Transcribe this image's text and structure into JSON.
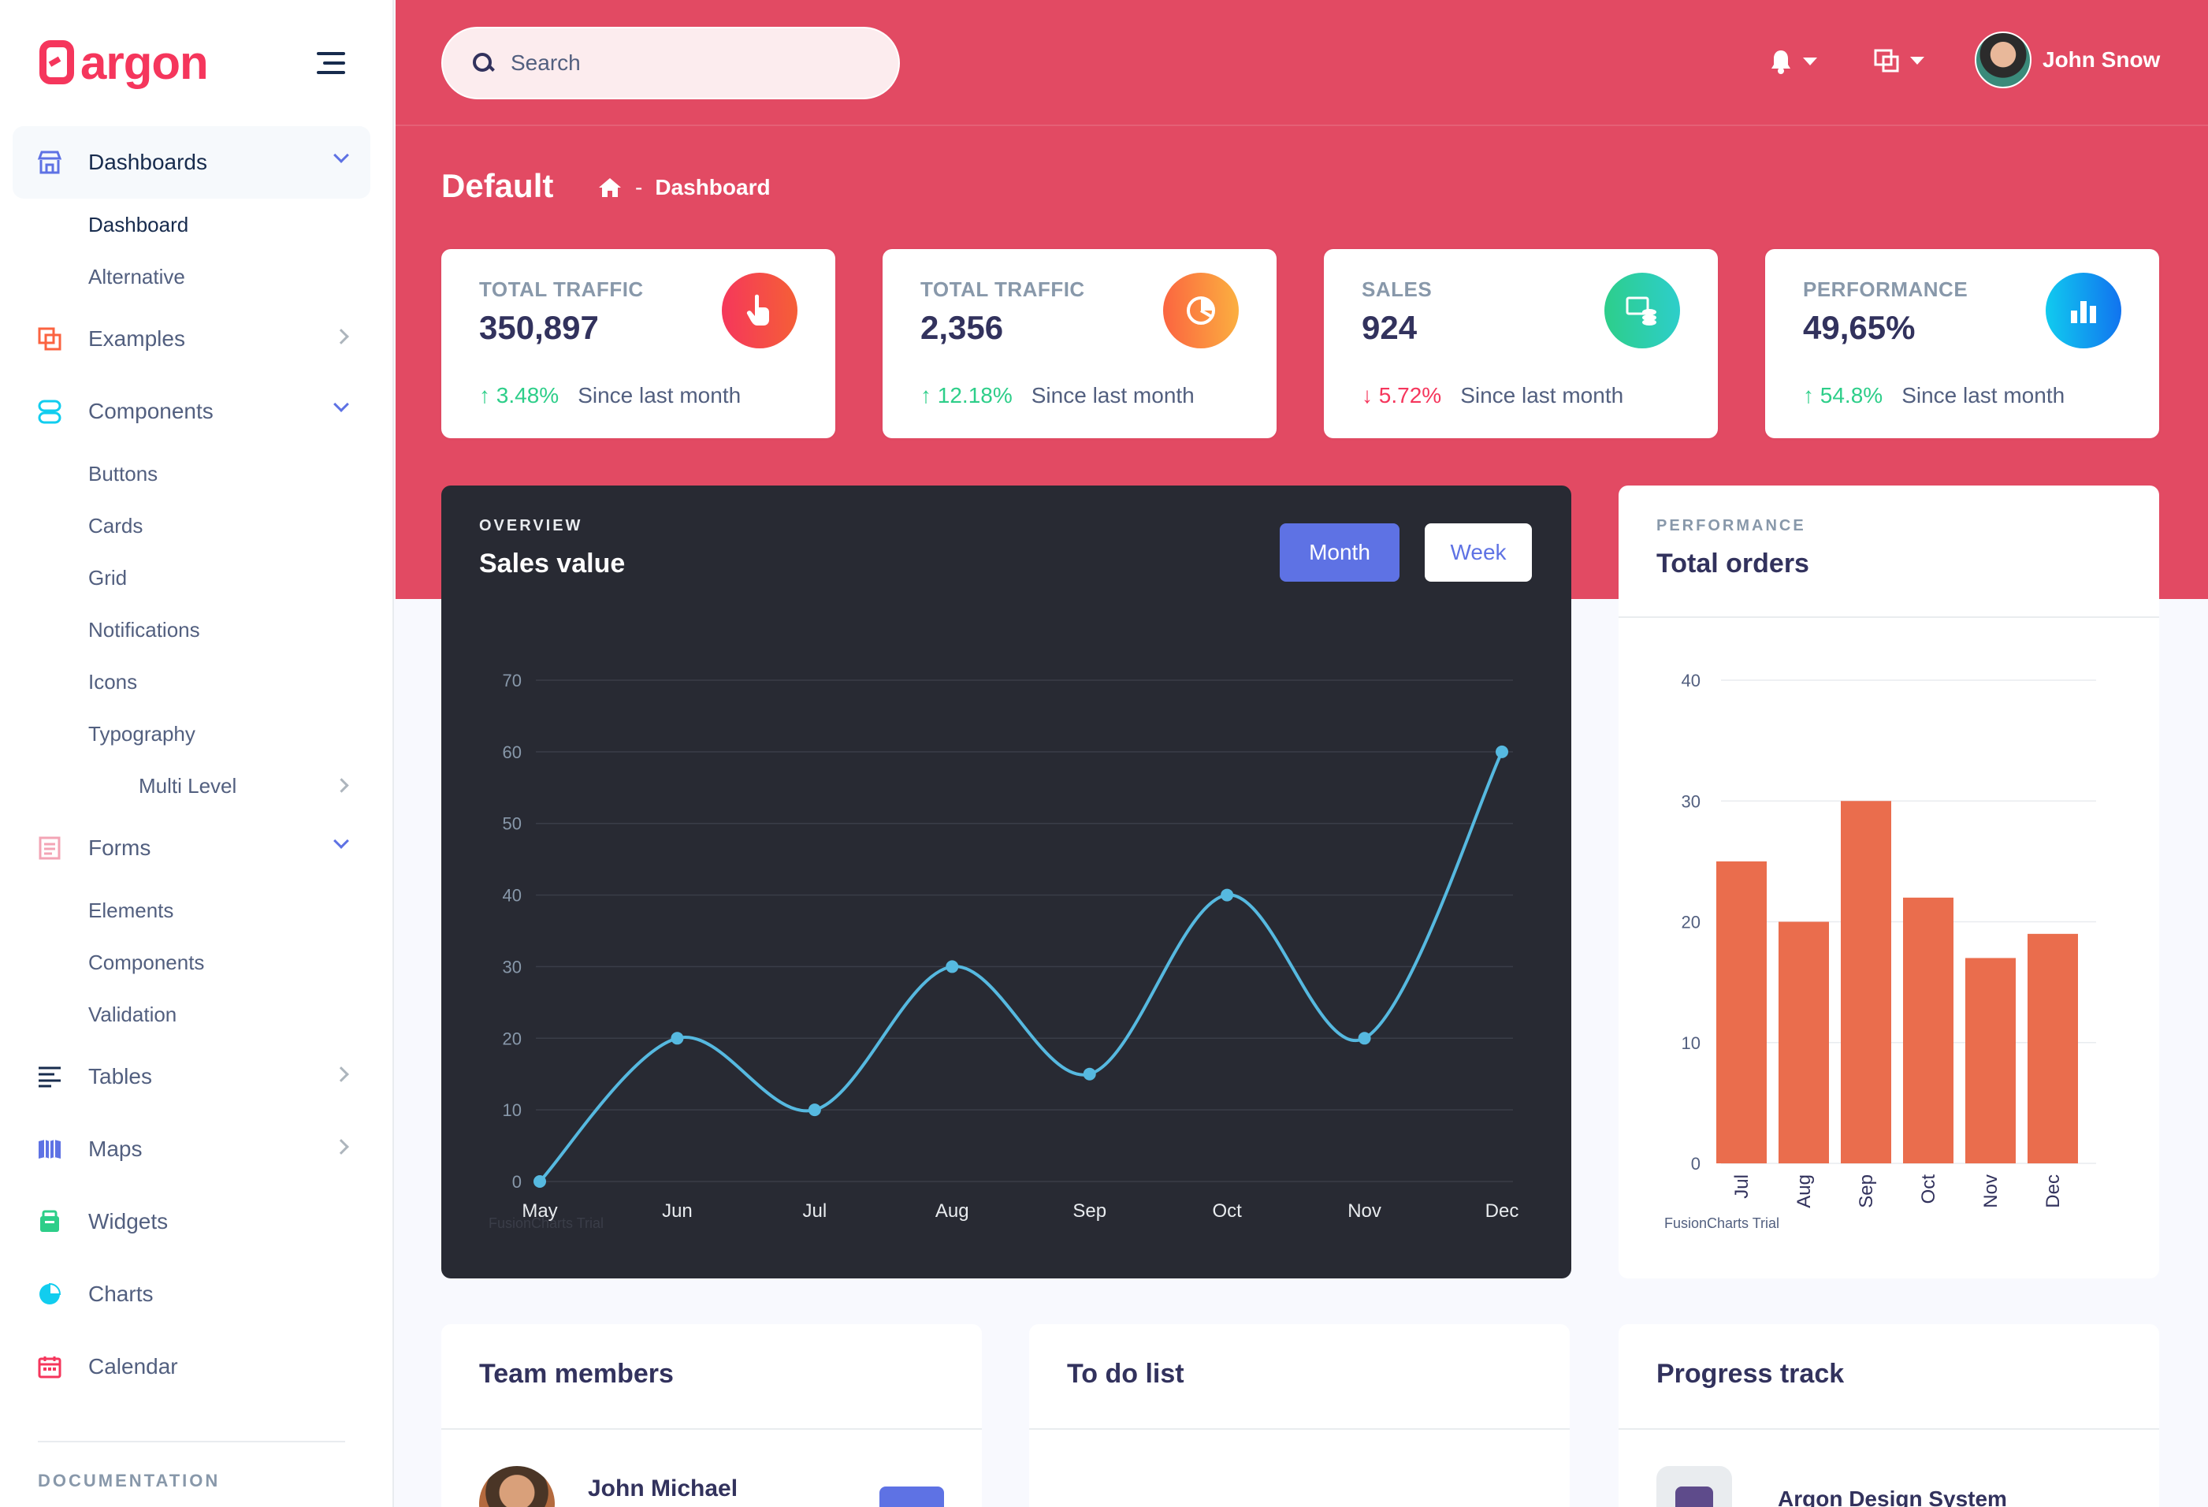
{
  "brand": {
    "name": "argon"
  },
  "sidebar": {
    "items": [
      {
        "label": "Dashboards"
      },
      {
        "label": "Examples"
      },
      {
        "label": "Components"
      },
      {
        "label": "Forms"
      },
      {
        "label": "Tables"
      },
      {
        "label": "Maps"
      },
      {
        "label": "Widgets"
      },
      {
        "label": "Charts"
      },
      {
        "label": "Calendar"
      }
    ],
    "dashboards_sub": [
      "Dashboard",
      "Alternative"
    ],
    "components_sub": [
      "Buttons",
      "Cards",
      "Grid",
      "Notifications",
      "Icons",
      "Typography",
      "Multi Level"
    ],
    "forms_sub": [
      "Elements",
      "Components",
      "Validation"
    ],
    "doc_heading": "DOCUMENTATION"
  },
  "header": {
    "search_placeholder": "Search",
    "user_name": "John Snow",
    "page_title": "Default",
    "breadcrumb": {
      "separator": "-",
      "current": "Dashboard"
    }
  },
  "stats": [
    {
      "label": "TOTAL TRAFFIC",
      "value": "350,897",
      "change": "3.48%",
      "direction": "up",
      "since": "Since last month",
      "color": "#f5365c",
      "icon": "pointer-icon"
    },
    {
      "label": "TOTAL TRAFFIC",
      "value": "2,356",
      "change": "12.18%",
      "direction": "up",
      "since": "Since last month",
      "color": "#fb6340",
      "icon": "pie-chart-icon"
    },
    {
      "label": "SALES",
      "value": "924",
      "change": "5.72%",
      "direction": "down",
      "since": "Since last month",
      "color": "#2dce89",
      "icon": "money-coins-icon"
    },
    {
      "label": "PERFORMANCE",
      "value": "49,65%",
      "change": "54.8%",
      "direction": "up",
      "since": "Since last month",
      "color": "#11cdef",
      "icon": "bar-chart-icon"
    }
  ],
  "sales_card": {
    "eyebrow": "OVERVIEW",
    "title": "Sales value",
    "buttons": {
      "month": "Month",
      "week": "Week"
    },
    "trial": "FusionCharts Trial"
  },
  "orders_card": {
    "eyebrow": "PERFORMANCE",
    "title": "Total orders",
    "trial": "FusionCharts Trial"
  },
  "bottom_cards": {
    "team": {
      "title": "Team members",
      "first_member": "John Michael"
    },
    "todo": {
      "title": "To do list"
    },
    "progress": {
      "title": "Progress track",
      "first_project": "Argon Design System"
    }
  },
  "colors": {
    "header": "#e24a63",
    "primary": "#5e72e4",
    "line": "#56b9e0",
    "bar": "#ea6d4d"
  },
  "chart_data": [
    {
      "type": "line",
      "categories": [
        "May",
        "Jun",
        "Jul",
        "Aug",
        "Sep",
        "Oct",
        "Nov",
        "Dec"
      ],
      "values": [
        0,
        20,
        10,
        30,
        15,
        40,
        20,
        60
      ],
      "yticks": [
        0,
        10,
        20,
        30,
        40,
        50,
        60,
        70
      ],
      "ylim": [
        0,
        70
      ],
      "grid": true
    },
    {
      "type": "bar",
      "categories": [
        "Jul",
        "Aug",
        "Sep",
        "Oct",
        "Nov",
        "Dec"
      ],
      "values": [
        25,
        20,
        30,
        22,
        17,
        19
      ],
      "yticks": [
        0,
        10,
        20,
        30,
        40
      ],
      "ylim": [
        0,
        40
      ],
      "grid": true
    }
  ]
}
